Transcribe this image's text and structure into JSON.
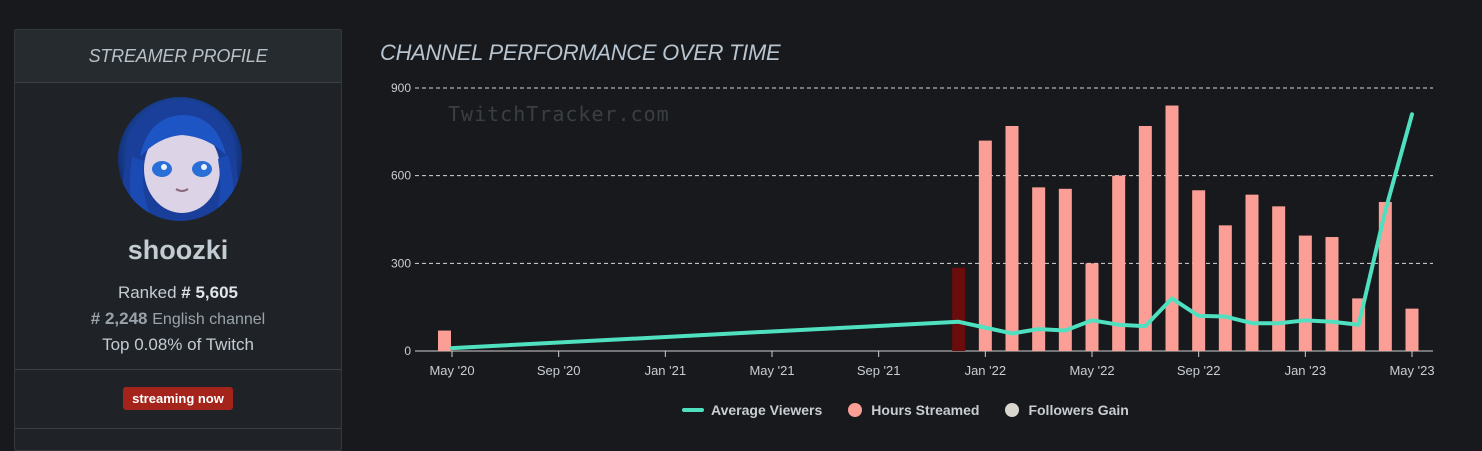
{
  "profile": {
    "header": "STREAMER PROFILE",
    "username": "shoozki",
    "rank_prefix": "Ranked",
    "rank_value": "# 5,605",
    "lang_rank_value": "# 2,248",
    "lang_rank_suffix": "English channel",
    "top_percent_text": "Top 0.08% of Twitch",
    "live_badge": "streaming now"
  },
  "chart": {
    "title": "CHANNEL PERFORMANCE OVER TIME",
    "watermark": "TwitchTracker.com"
  },
  "legend": {
    "avg_viewers": "Average Viewers",
    "hours_streamed": "Hours Streamed",
    "followers_gain": "Followers Gain"
  },
  "colors": {
    "bar": "#fb9e95",
    "bar_highlight": "#6b0c0c",
    "line": "#4fe0c0",
    "followers": "#d9d6d0"
  },
  "chart_data": {
    "type": "bar",
    "title": "CHANNEL PERFORMANCE OVER TIME",
    "ylim": [
      0,
      900
    ],
    "yticks": [
      0,
      300,
      600,
      900
    ],
    "xticks": [
      "May '20",
      "Sep '20",
      "Jan '21",
      "May '21",
      "Sep '21",
      "Jan '22",
      "May '22",
      "Sep '22",
      "Jan '23",
      "May '23"
    ],
    "x_start_month": "2020-05",
    "x_end_month": "2023-05",
    "series": [
      {
        "name": "Hours Streamed",
        "type": "bar",
        "points": [
          {
            "m": 0,
            "v": 70
          },
          {
            "m": 19,
            "v": 285,
            "highlight": true
          },
          {
            "m": 20,
            "v": 720
          },
          {
            "m": 21,
            "v": 770
          },
          {
            "m": 22,
            "v": 560
          },
          {
            "m": 23,
            "v": 555
          },
          {
            "m": 24,
            "v": 300
          },
          {
            "m": 25,
            "v": 600
          },
          {
            "m": 26,
            "v": 770
          },
          {
            "m": 27,
            "v": 840
          },
          {
            "m": 28,
            "v": 550
          },
          {
            "m": 29,
            "v": 430
          },
          {
            "m": 30,
            "v": 535
          },
          {
            "m": 31,
            "v": 495
          },
          {
            "m": 32,
            "v": 395
          },
          {
            "m": 33,
            "v": 390
          },
          {
            "m": 34,
            "v": 180
          },
          {
            "m": 35,
            "v": 510
          },
          {
            "m": 36,
            "v": 145
          }
        ]
      },
      {
        "name": "Average Viewers",
        "type": "line",
        "points": [
          {
            "m": 0,
            "v": 10
          },
          {
            "m": 19,
            "v": 100
          },
          {
            "m": 20,
            "v": 80
          },
          {
            "m": 21,
            "v": 60
          },
          {
            "m": 22,
            "v": 75
          },
          {
            "m": 23,
            "v": 70
          },
          {
            "m": 24,
            "v": 105
          },
          {
            "m": 25,
            "v": 90
          },
          {
            "m": 26,
            "v": 85
          },
          {
            "m": 27,
            "v": 180
          },
          {
            "m": 28,
            "v": 120
          },
          {
            "m": 29,
            "v": 118
          },
          {
            "m": 30,
            "v": 95
          },
          {
            "m": 31,
            "v": 95
          },
          {
            "m": 32,
            "v": 105
          },
          {
            "m": 33,
            "v": 100
          },
          {
            "m": 34,
            "v": 90
          },
          {
            "m": 35,
            "v": 480
          },
          {
            "m": 36,
            "v": 810
          }
        ]
      }
    ]
  }
}
